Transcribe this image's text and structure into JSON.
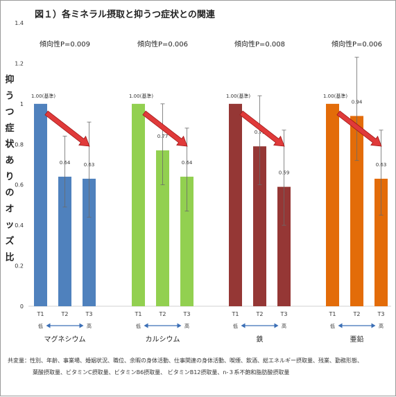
{
  "chart_data": {
    "type": "bar",
    "title": "図１）各ミネラル摂取と抑うつ症状との関連",
    "ylabel": "抑うつ症状ありのオッズ比",
    "ylim": [
      0,
      1.4
    ],
    "yticks": [
      "0",
      "0.2",
      "0.4",
      "0.6",
      "0.8",
      "1",
      "1.2",
      "1.4"
    ],
    "low_label": "低",
    "high_label": "高",
    "groups": [
      {
        "name": "マグネシウム",
        "trend": "傾向性P=0.009",
        "color": "#4f81bd",
        "categories": [
          "T1",
          "T2",
          "T3"
        ],
        "values": [
          1.0,
          0.64,
          0.63
        ],
        "labels": [
          "1.00(基準)",
          "0.64",
          "0.63"
        ],
        "ci_low": [
          null,
          0.49,
          0.44
        ],
        "ci_high": [
          null,
          0.84,
          0.91
        ]
      },
      {
        "name": "カルシウム",
        "trend": "傾向性P=0.006",
        "color": "#92d050",
        "categories": [
          "T1",
          "T2",
          "T3"
        ],
        "values": [
          1.0,
          0.77,
          0.64
        ],
        "labels": [
          "1.00(基準)",
          "0.77",
          "0.64"
        ],
        "ci_low": [
          null,
          0.6,
          0.47
        ],
        "ci_high": [
          null,
          1.0,
          0.88
        ]
      },
      {
        "name": "鉄",
        "trend": "傾向性P=0.008",
        "color": "#953735",
        "categories": [
          "T1",
          "T2",
          "T3"
        ],
        "values": [
          1.0,
          0.79,
          0.59
        ],
        "labels": [
          "1.00(基準)",
          "0.79",
          "0.59"
        ],
        "ci_low": [
          null,
          0.6,
          0.4
        ],
        "ci_high": [
          null,
          1.04,
          0.87
        ]
      },
      {
        "name": "亜鉛",
        "trend": "傾向性P=0.006",
        "color": "#e36c09",
        "categories": [
          "T1",
          "T2",
          "T3"
        ],
        "values": [
          1.0,
          0.94,
          0.63
        ],
        "labels": [
          "1.00(基準)",
          "0.94",
          "0.63"
        ],
        "ci_low": [
          null,
          0.72,
          0.45
        ],
        "ci_high": [
          null,
          1.23,
          0.87
        ]
      }
    ],
    "arrow_color": "#e03a3a",
    "grid": false,
    "legend": "none"
  },
  "footnote": {
    "line1": "共変量：性別、年齢、事業場、婚姻状況、職位、余暇の身体活動、仕事関連の身体活動、喫煙、飲酒、総エネルギー摂取量、残業、勤務形態、",
    "line2": "葉酸摂取量、ビタミンC摂取量、ビタミンB6摂取量、 ビタミンB12摂取量、n-３系不飽和脂肪酸摂取量"
  }
}
